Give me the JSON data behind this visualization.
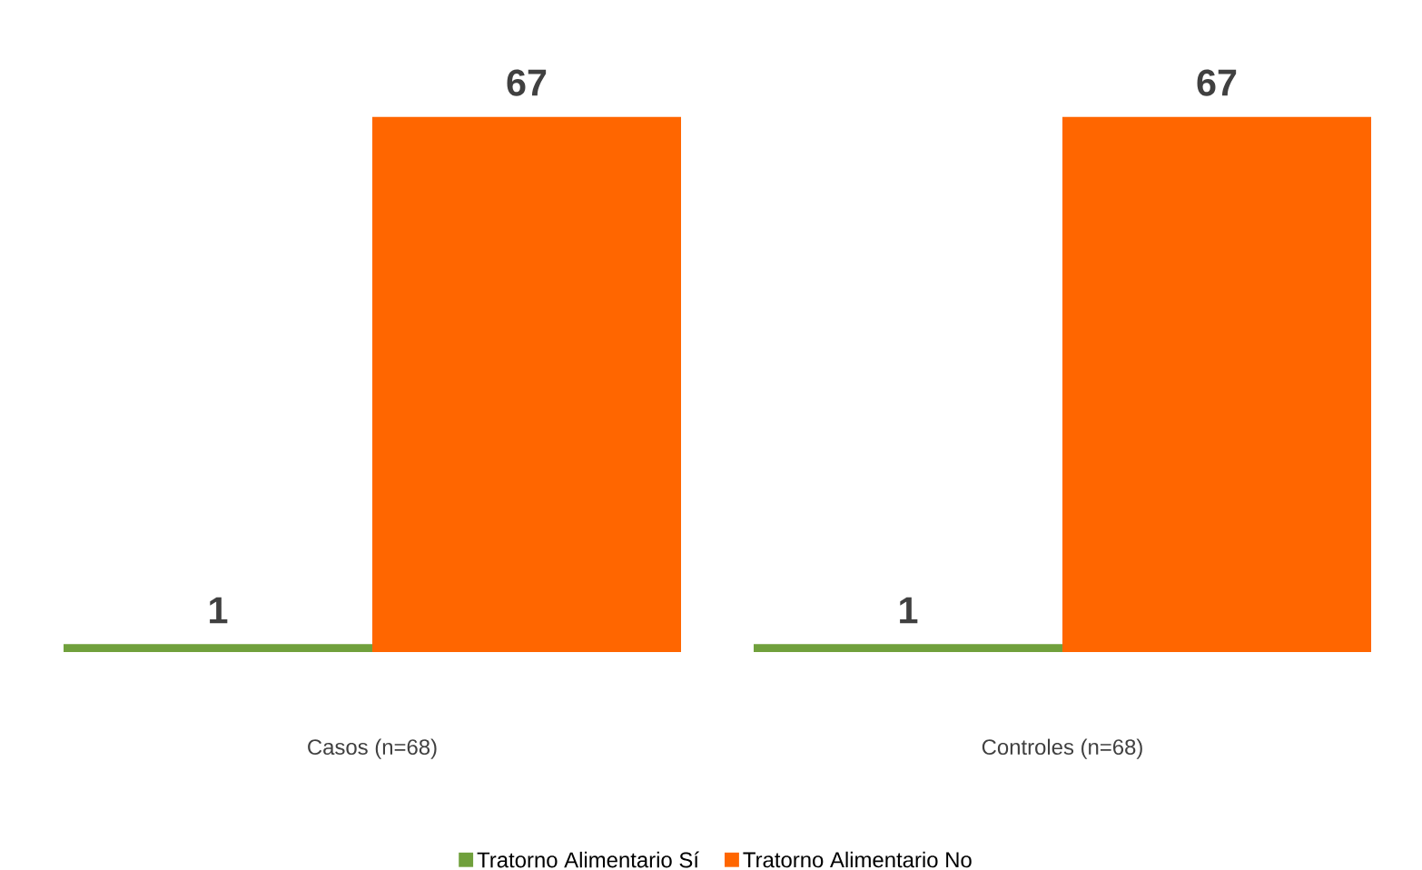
{
  "chart_data": {
    "type": "bar",
    "categories": [
      "Casos (n=68)",
      "Controles (n=68)"
    ],
    "series": [
      {
        "name": "Tratorno Alimentario Sí",
        "color": "#70a03c",
        "values": [
          1,
          1
        ]
      },
      {
        "name": "Tratorno Alimentario No",
        "color": "#ff6600",
        "values": [
          67,
          67
        ]
      }
    ],
    "data_labels": true,
    "legend": "bottom"
  }
}
